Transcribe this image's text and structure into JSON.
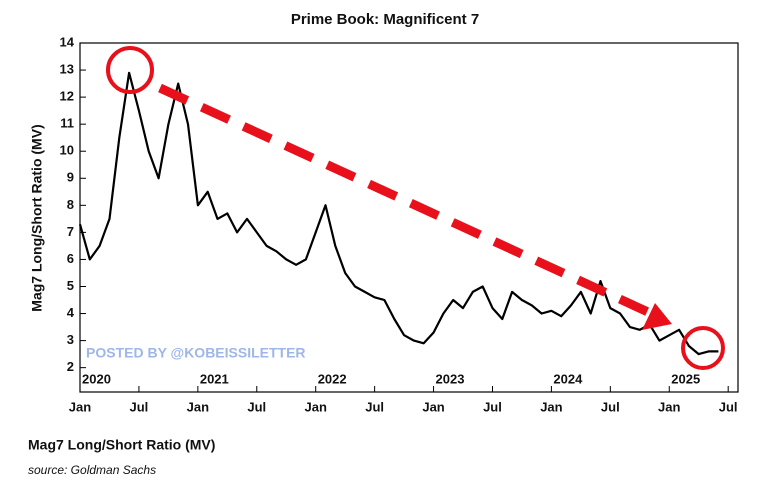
{
  "chart_data": {
    "type": "line",
    "title": "Prime Book: Magnificent 7",
    "y_label": "Mag7 Long/Short Ratio (MV)",
    "footer_title": "Mag7 Long/Short Ratio (MV)",
    "source": "source: Goldman Sachs",
    "watermark": "POSTED BY @KOBEISSILETTER",
    "x": [
      "2020-01",
      "2020-02",
      "2020-03",
      "2020-04",
      "2020-05",
      "2020-06",
      "2020-07",
      "2020-08",
      "2020-09",
      "2020-10",
      "2020-11",
      "2020-12",
      "2021-01",
      "2021-02",
      "2021-03",
      "2021-04",
      "2021-05",
      "2021-06",
      "2021-07",
      "2021-08",
      "2021-09",
      "2021-10",
      "2021-11",
      "2021-12",
      "2022-01",
      "2022-02",
      "2022-03",
      "2022-04",
      "2022-05",
      "2022-06",
      "2022-07",
      "2022-08",
      "2022-09",
      "2022-10",
      "2022-11",
      "2022-12",
      "2023-01",
      "2023-02",
      "2023-03",
      "2023-04",
      "2023-05",
      "2023-06",
      "2023-07",
      "2023-08",
      "2023-09",
      "2023-10",
      "2023-11",
      "2023-12",
      "2024-01",
      "2024-02",
      "2024-03",
      "2024-04",
      "2024-05",
      "2024-06",
      "2024-07",
      "2024-08",
      "2024-09",
      "2024-10",
      "2024-11",
      "2024-12",
      "2025-01",
      "2025-02",
      "2025-03",
      "2025-04",
      "2025-05",
      "2025-06"
    ],
    "series": [
      {
        "name": "Mag7 Long/Short Ratio (MV)",
        "color": "#000000",
        "values": [
          7.3,
          6.0,
          6.5,
          7.5,
          10.5,
          12.9,
          11.5,
          10.0,
          9.0,
          11.0,
          12.5,
          11.0,
          8.0,
          8.5,
          7.5,
          7.7,
          7.0,
          7.5,
          7.0,
          6.5,
          6.3,
          6.0,
          5.8,
          6.0,
          7.0,
          8.0,
          6.5,
          5.5,
          5.0,
          4.8,
          4.6,
          4.5,
          3.8,
          3.2,
          3.0,
          2.9,
          3.3,
          4.0,
          4.5,
          4.2,
          4.8,
          5.0,
          4.2,
          3.8,
          4.8,
          4.5,
          4.3,
          4.0,
          4.1,
          3.9,
          4.3,
          4.8,
          4.0,
          5.2,
          4.2,
          4.0,
          3.5,
          3.4,
          3.6,
          3.0,
          3.2,
          3.4,
          2.8,
          2.5,
          2.6,
          2.6
        ]
      }
    ],
    "xlim": [
      "2020-01",
      "2025-08"
    ],
    "xticks": [
      {
        "value": "2020-01",
        "label": "Jan"
      },
      {
        "value": "2020-07",
        "label": "Jul"
      },
      {
        "value": "2021-01",
        "label": "Jan"
      },
      {
        "value": "2021-07",
        "label": "Jul"
      },
      {
        "value": "2022-01",
        "label": "Jan"
      },
      {
        "value": "2022-07",
        "label": "Jul"
      },
      {
        "value": "2023-01",
        "label": "Jan"
      },
      {
        "value": "2023-07",
        "label": "Jul"
      },
      {
        "value": "2024-01",
        "label": "Jan"
      },
      {
        "value": "2024-07",
        "label": "Jul"
      },
      {
        "value": "2025-01",
        "label": "Jan"
      },
      {
        "value": "2025-07",
        "label": "Jul"
      }
    ],
    "year_labels": [
      {
        "value": "2020-01",
        "label": "2020"
      },
      {
        "value": "2021-01",
        "label": "2021"
      },
      {
        "value": "2022-01",
        "label": "2022"
      },
      {
        "value": "2023-01",
        "label": "2023"
      },
      {
        "value": "2024-01",
        "label": "2024"
      },
      {
        "value": "2025-01",
        "label": "2025"
      }
    ],
    "ylim": [
      1.1,
      14
    ],
    "yticks": [
      2,
      3,
      4,
      5,
      6,
      7,
      8,
      9,
      10,
      11,
      12,
      13,
      14
    ],
    "grid": false
  }
}
